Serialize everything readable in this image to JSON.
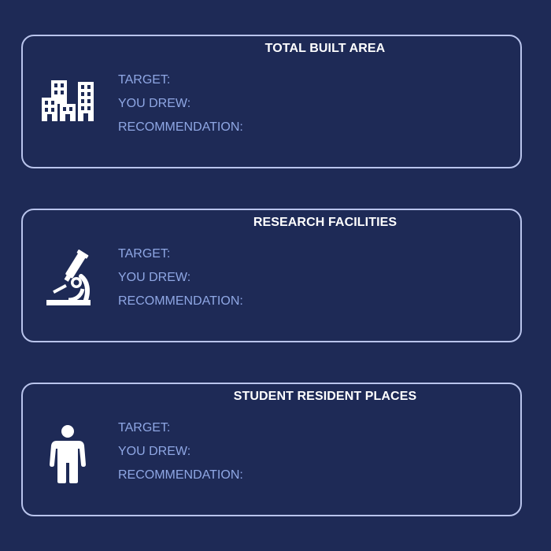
{
  "cards": [
    {
      "title": "TOTAL BUILT AREA",
      "icon": "buildings-icon",
      "fields": {
        "target_label": "TARGET:",
        "drew_label": "YOU DREW:",
        "recommendation_label": "RECOMMENDATION:"
      }
    },
    {
      "title": "RESEARCH FACILITIES",
      "icon": "microscope-icon",
      "fields": {
        "target_label": "TARGET:",
        "drew_label": "YOU DREW:",
        "recommendation_label": "RECOMMENDATION:"
      }
    },
    {
      "title": "STUDENT RESIDENT PLACES",
      "icon": "person-icon",
      "fields": {
        "target_label": "TARGET:",
        "drew_label": "YOU DREW:",
        "recommendation_label": "RECOMMENDATION:"
      }
    }
  ],
  "colors": {
    "background": "#1e2a56",
    "card_border": "#b9c4ec",
    "title_text": "#ffffff",
    "field_text": "#8fa7e4"
  }
}
